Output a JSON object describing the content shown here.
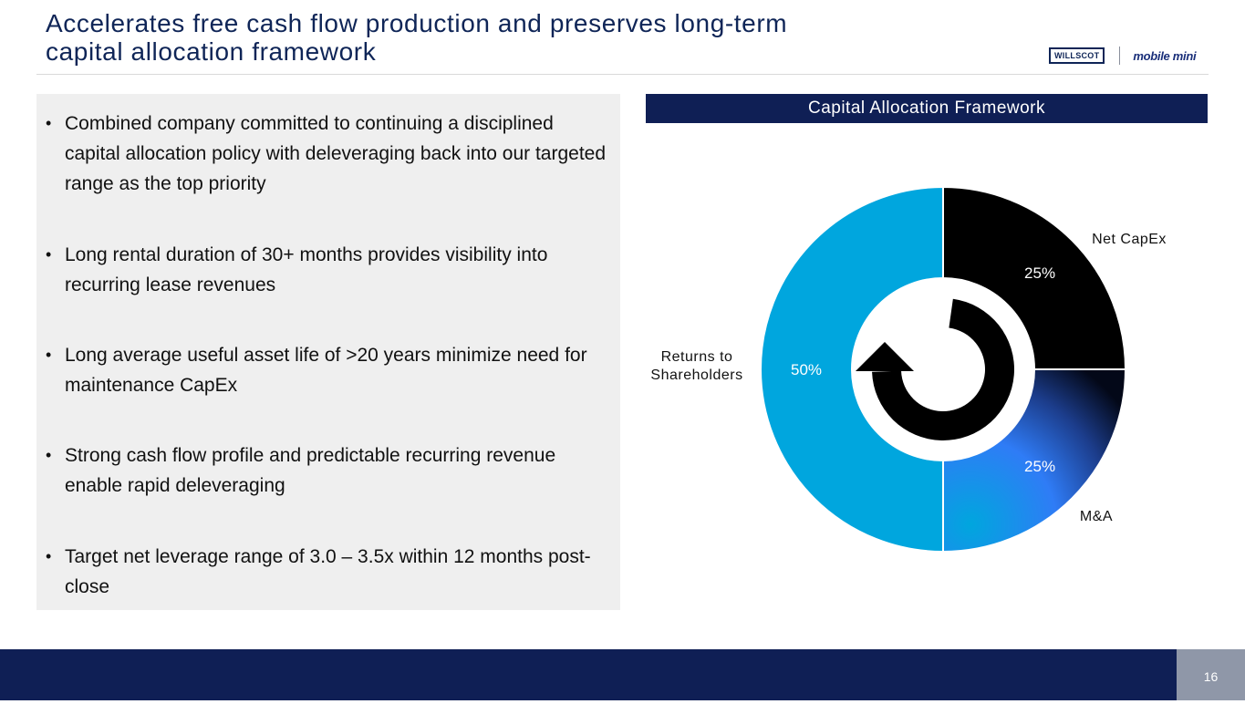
{
  "header": {
    "title": "Accelerates free cash flow production and preserves long-term capital allocation framework",
    "logo_left": "WILLSCOT",
    "logo_right": "mobile mini"
  },
  "bullets": [
    "Combined company committed to continuing a disciplined capital allocation policy with deleveraging back into our targeted range as the top priority",
    "Long rental duration of 30+ months provides visibility into recurring lease revenues",
    "Long average useful asset life of >20 years minimize need for maintenance CapEx",
    "Strong cash flow profile and predictable recurring revenue enable rapid deleveraging",
    "Target net leverage range of 3.0 – 3.5x within 12 months post-close"
  ],
  "bullet_glyph": "•",
  "chart_data": {
    "type": "pie",
    "variant": "donut",
    "title": "Capital Allocation Framework",
    "center_icon": "circular-arrow-icon",
    "series": [
      {
        "name": "Net CapEx",
        "value": 25,
        "label": "25%",
        "color": "#000000"
      },
      {
        "name": "M&A",
        "value": 25,
        "label": "25%",
        "color": "#2f7cf6"
      },
      {
        "name": "Returns to Shareholders",
        "value": 50,
        "label": "50%",
        "color": "#00a6de"
      }
    ]
  },
  "footer": {
    "page_number": "16"
  },
  "colors": {
    "navy": "#0f1f55",
    "title": "#0f2557",
    "panel_bg": "#efefef",
    "page_box": "#8f97a8"
  }
}
